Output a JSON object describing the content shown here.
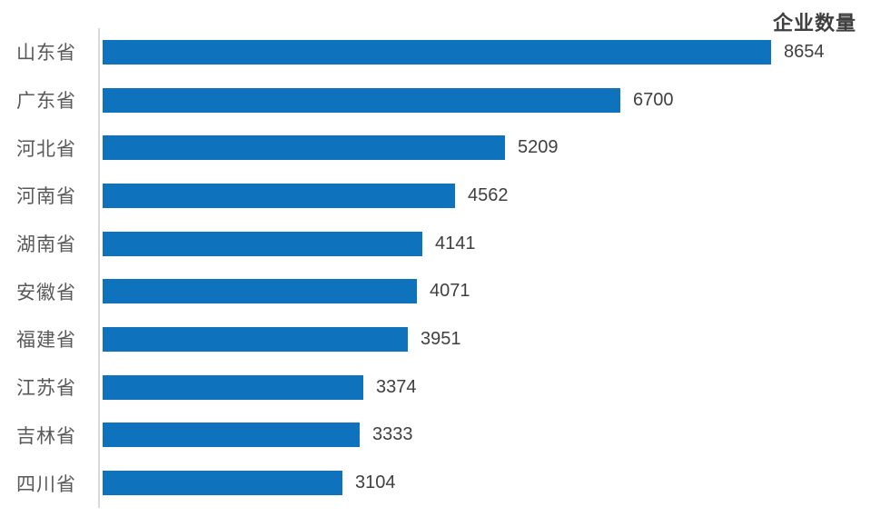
{
  "chart_data": {
    "type": "bar",
    "orientation": "horizontal",
    "title": "企业数量",
    "categories": [
      "山东省",
      "广东省",
      "河北省",
      "河南省",
      "湖南省",
      "安徽省",
      "福建省",
      "江苏省",
      "吉林省",
      "四川省"
    ],
    "values": [
      8654,
      6700,
      5209,
      4562,
      4141,
      4071,
      3951,
      3374,
      3333,
      3104
    ],
    "value_labels_shown": true,
    "xlim": [
      0,
      8654
    ],
    "grid": false,
    "legend": "none",
    "bar_color": "#0f72bc",
    "category_label_color": "#595959",
    "value_label_color": "#404040",
    "title_color": "#3f3f3f",
    "axis_line_color": "#d9d9d9"
  }
}
